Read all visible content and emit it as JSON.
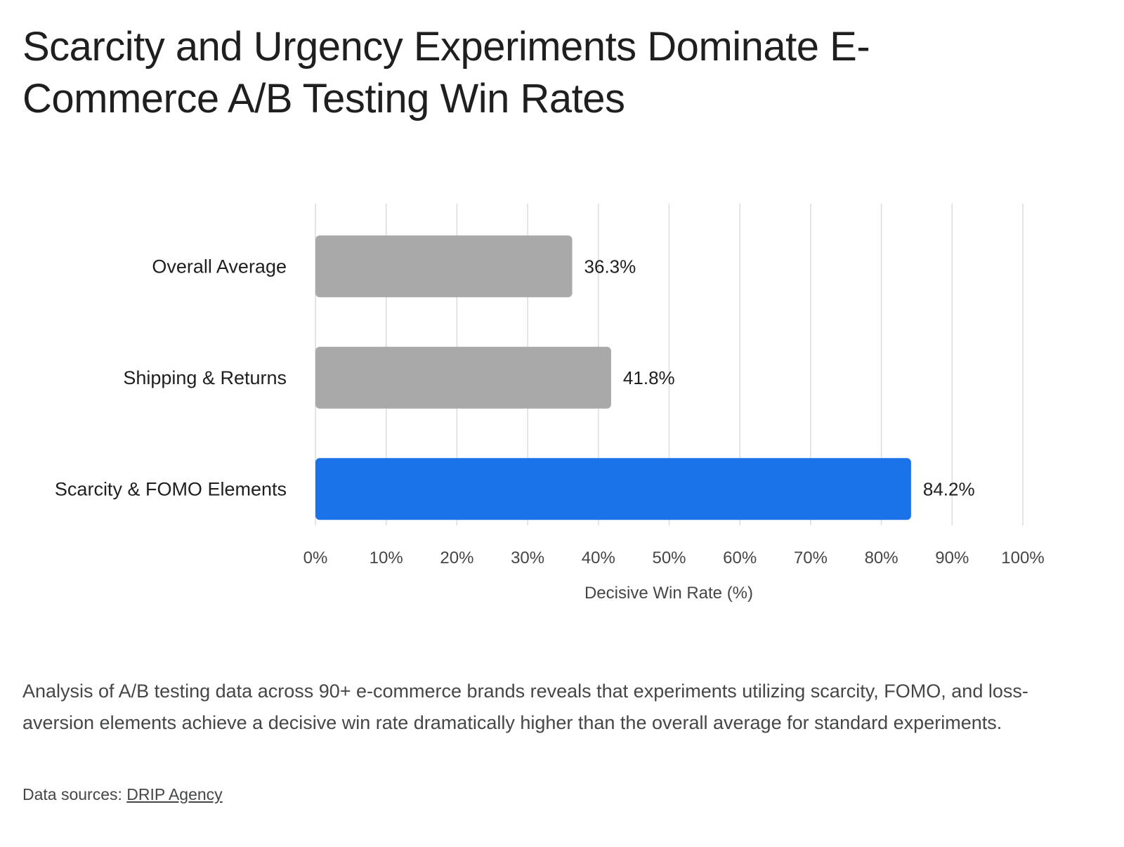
{
  "title": "Scarcity and Urgency Experiments Dominate E-Commerce A/B Testing Win Rates",
  "description": "Analysis of A/B testing data across 90+ e-commerce brands reveals that experiments utilizing scarcity, FOMO, and loss-aversion elements achieve a decisive win rate dramatically higher than the overall average for standard experiments.",
  "source": {
    "prefix": "Data sources: ",
    "link_label": "DRIP Agency"
  },
  "chart_data": {
    "type": "bar",
    "orientation": "horizontal",
    "categories": [
      "Overall Average",
      "Shipping & Returns",
      "Scarcity & FOMO Elements"
    ],
    "values": [
      36.3,
      41.8,
      84.2
    ],
    "value_labels": [
      "36.3%",
      "41.8%",
      "84.2%"
    ],
    "bar_colors": [
      "#a9a9a9",
      "#a9a9a9",
      "#1a73e8"
    ],
    "title": "Scarcity and Urgency Experiments Dominate E-Commerce A/B Testing Win Rates",
    "xlabel": "Decisive Win Rate (%)",
    "ylabel": "",
    "xlim": [
      0,
      100
    ],
    "xticks": [
      0,
      10,
      20,
      30,
      40,
      50,
      60,
      70,
      80,
      90,
      100
    ],
    "xtick_labels": [
      "0%",
      "10%",
      "20%",
      "30%",
      "40%",
      "50%",
      "60%",
      "70%",
      "80%",
      "90%",
      "100%"
    ],
    "grid": true,
    "legend": "none"
  }
}
